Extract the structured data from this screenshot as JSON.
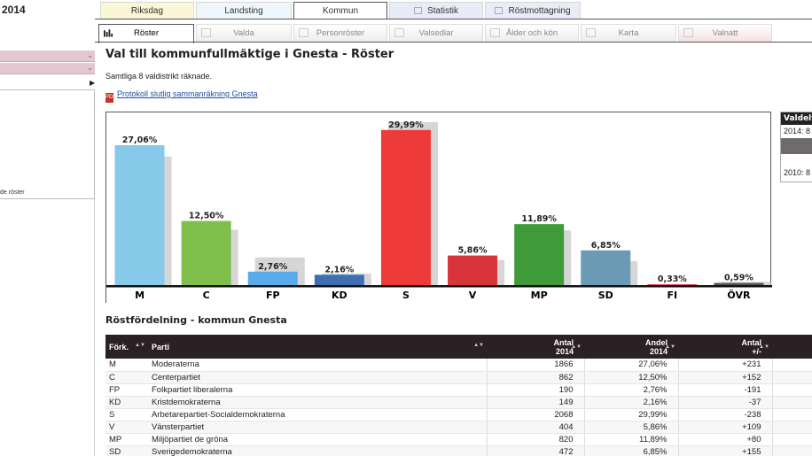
{
  "sidebar": {
    "year": "2014",
    "panel_text": "de röster"
  },
  "top_tabs": [
    {
      "label": "Riksdag"
    },
    {
      "label": "Landsting"
    },
    {
      "label": "Kommun"
    },
    {
      "label": "Statistik"
    },
    {
      "label": "Röstmottagning"
    }
  ],
  "sub_tabs": [
    {
      "label": "Röster"
    },
    {
      "label": "Valda"
    },
    {
      "label": "Personröster"
    },
    {
      "label": "Valsedlar"
    },
    {
      "label": "Ålder och kön"
    },
    {
      "label": "Karta"
    },
    {
      "label": "Valnatt"
    }
  ],
  "main": {
    "title": "Val till kommunfullmäktige i Gnesta - Röster",
    "counted": "Samtliga 8 valdistrikt räknade.",
    "protokoll_link": "Protokoll slutlig sammanräkning Gnesta",
    "pdf_icon": "PDF"
  },
  "chart_data": {
    "type": "bar",
    "categories": [
      "M",
      "C",
      "FP",
      "KD",
      "S",
      "V",
      "MP",
      "SD",
      "FI",
      "ÖVR"
    ],
    "series": [
      {
        "values": [
          27.06,
          12.5,
          2.76,
          2.16,
          29.99,
          5.86,
          11.89,
          6.85,
          0.33,
          0.59
        ]
      },
      {
        "values": [
          24.9,
          10.8,
          5.5,
          2.4,
          31.5,
          5.0,
          10.7,
          4.8,
          0.0,
          0.8
        ]
      }
    ],
    "value_labels": [
      "27,06%",
      "12,50%",
      "2,76%",
      "2,16%",
      "29,99%",
      "5,86%",
      "11,89%",
      "6,85%",
      "0,33%",
      "0,59%"
    ],
    "colors": [
      "#87c9e8",
      "#7fbf4a",
      "#5aabea",
      "#3e6fb3",
      "#ef3a3a",
      "#d9343a",
      "#3f9b3a",
      "#6b9ab5",
      "#e2384a",
      "#555555"
    ],
    "ghost_color": "#d6d6d6",
    "ylim": [
      0,
      32
    ]
  },
  "valdeltagande": {
    "header": "Valdelt",
    "row1": "2014: 8",
    "row2": "2010: 8"
  },
  "distribution": {
    "title": "Röstfördelning - kommun Gnesta",
    "headers": {
      "abbr": "Förk.",
      "party": "Parti",
      "votes": "Antal",
      "votes_year": "2014",
      "share": "Andel",
      "share_year": "2014",
      "change": "Antal",
      "change_sub": "+/-"
    },
    "rows": [
      {
        "abbr": "M",
        "party": "Moderaterna",
        "votes": "1866",
        "share": "27,06%",
        "change": "+231"
      },
      {
        "abbr": "C",
        "party": "Centerpartiet",
        "votes": "862",
        "share": "12,50%",
        "change": "+152"
      },
      {
        "abbr": "FP",
        "party": "Folkpartiet liberalerna",
        "votes": "190",
        "share": "2,76%",
        "change": "-191"
      },
      {
        "abbr": "KD",
        "party": "Kristdemokraterna",
        "votes": "149",
        "share": "2,16%",
        "change": "-37"
      },
      {
        "abbr": "S",
        "party": "Arbetarepartiet-Socialdemokraterna",
        "votes": "2068",
        "share": "29,99%",
        "change": "-238"
      },
      {
        "abbr": "V",
        "party": "Vänsterpartiet",
        "votes": "404",
        "share": "5,86%",
        "change": "+109"
      },
      {
        "abbr": "MP",
        "party": "Miljöpartiet de gröna",
        "votes": "820",
        "share": "11,89%",
        "change": "+80"
      },
      {
        "abbr": "SD",
        "party": "Sverigedemokraterna",
        "votes": "472",
        "share": "6,85%",
        "change": "+155"
      }
    ]
  }
}
